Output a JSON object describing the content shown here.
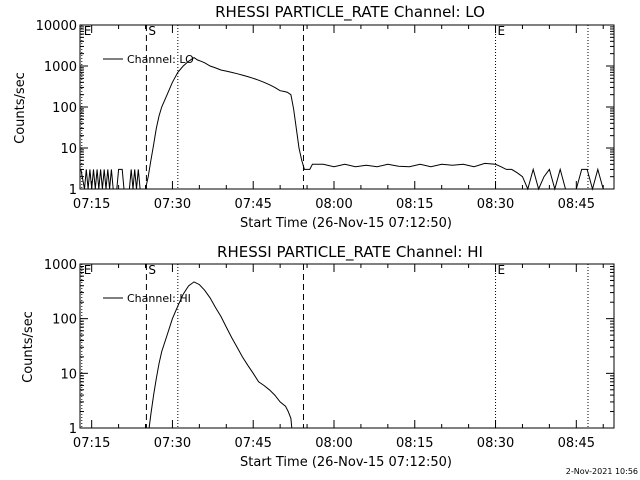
{
  "footer_timestamp": "2-Nov-2021 10:56",
  "chart_data": [
    {
      "type": "line",
      "title": "RHESSI PARTICLE_RATE Channel: LO",
      "xlabel": "Start Time (26-Nov-15 07:12:50)",
      "ylabel": "Counts/sec",
      "y_scale": "log",
      "ylim": [
        1,
        10000
      ],
      "xlim": [
        "07:12:50",
        "08:52:00"
      ],
      "x_ticks": [
        "07:15",
        "07:30",
        "07:45",
        "08:00",
        "08:15",
        "08:30",
        "08:45"
      ],
      "y_ticks": [
        "1",
        "10",
        "100",
        "1000",
        "10000"
      ],
      "legend": {
        "position": "top-left",
        "entries": [
          "Channel: LO"
        ]
      },
      "markers": [
        {
          "label": "E",
          "time": "07:13:10",
          "style": "dotted"
        },
        {
          "label": "S",
          "time": "07:25:10",
          "style": "dashed"
        },
        {
          "label": "",
          "time": "07:31:00",
          "style": "dotted"
        },
        {
          "label": "",
          "time": "07:54:20",
          "style": "dashed"
        },
        {
          "label": "E",
          "time": "08:30:00",
          "style": "dotted"
        },
        {
          "label": "",
          "time": "08:47:10",
          "style": "dotted"
        }
      ],
      "series": [
        {
          "name": "Channel: LO",
          "x": [
            "07:13:00",
            "07:13:40",
            "07:14:00",
            "07:14:20",
            "07:14:40",
            "07:15:00",
            "07:15:20",
            "07:15:40",
            "07:16:00",
            "07:16:20",
            "07:16:40",
            "07:17:00",
            "07:17:20",
            "07:17:40",
            "07:18:00",
            "07:18:20",
            "07:18:40",
            "07:19:00",
            "07:19:20",
            "07:19:40",
            "07:20:00",
            "07:20:40",
            "07:21:00",
            "07:21:20",
            "07:21:40",
            "07:22:00",
            "07:22:20",
            "07:22:40",
            "07:23:00",
            "07:23:20",
            "07:23:40",
            "07:24:00",
            "07:24:20",
            "07:24:40",
            "07:25:00",
            "07:25:30",
            "07:26:00",
            "07:26:30",
            "07:27:00",
            "07:27:30",
            "07:28:00",
            "07:29:00",
            "07:30:00",
            "07:31:00",
            "07:32:00",
            "07:33:00",
            "07:34:00",
            "07:34:40",
            "07:35:20",
            "07:36:00",
            "07:37:00",
            "07:38:00",
            "07:39:00",
            "07:40:00",
            "07:41:00",
            "07:42:00",
            "07:43:00",
            "07:44:00",
            "07:45:00",
            "07:46:00",
            "07:47:00",
            "07:48:00",
            "07:49:00",
            "07:50:00",
            "07:50:40",
            "07:51:20",
            "07:52:00",
            "07:52:30",
            "07:53:00",
            "07:53:30",
            "07:54:00",
            "07:54:30",
            "07:55:00",
            "07:55:30",
            "07:56:00",
            "07:58:00",
            "08:00:00",
            "08:02:00",
            "08:04:00",
            "08:06:00",
            "08:08:00",
            "08:10:00",
            "08:12:00",
            "08:14:00",
            "08:16:00",
            "08:18:00",
            "08:20:00",
            "08:22:00",
            "08:24:00",
            "08:26:00",
            "08:28:00",
            "08:30:00",
            "08:31:00",
            "08:32:00",
            "08:33:00",
            "08:34:00",
            "08:35:00",
            "08:36:00",
            "08:37:00",
            "08:38:00",
            "08:39:00",
            "08:40:00",
            "08:41:00",
            "08:42:00",
            "08:43:00",
            "08:44:00",
            "08:45:00",
            "08:46:00",
            "08:47:00",
            "08:48:00",
            "08:49:00",
            "08:50:00",
            "08:51:00"
          ],
          "values": [
            3,
            1,
            3,
            1,
            3,
            1,
            3,
            1,
            3,
            1,
            3,
            1,
            3,
            1,
            3,
            1,
            3,
            1,
            1,
            1,
            3,
            3,
            1,
            1,
            1,
            1,
            3,
            1,
            3,
            1,
            3,
            1,
            1,
            1,
            1,
            2,
            5,
            12,
            30,
            60,
            100,
            200,
            400,
            700,
            1000,
            1300,
            1600,
            1400,
            1300,
            1200,
            1000,
            900,
            800,
            750,
            700,
            650,
            600,
            550,
            500,
            450,
            400,
            350,
            300,
            250,
            240,
            230,
            200,
            90,
            30,
            10,
            5,
            3,
            3,
            3,
            4,
            4,
            3.5,
            4,
            3.5,
            3.8,
            3.5,
            4,
            3.6,
            3.5,
            4,
            3.5,
            4,
            3.8,
            4,
            3.5,
            4.2,
            4,
            3.5,
            3,
            3,
            2.5,
            2,
            1,
            3,
            1,
            2,
            3,
            1,
            3,
            1,
            1,
            1,
            3,
            3,
            1,
            3,
            1,
            1
          ]
        }
      ]
    },
    {
      "type": "line",
      "title": "RHESSI PARTICLE_RATE Channel: HI",
      "xlabel": "Start Time (26-Nov-15 07:12:50)",
      "ylabel": "Counts/sec",
      "y_scale": "log",
      "ylim": [
        1,
        1000
      ],
      "xlim": [
        "07:12:50",
        "08:52:00"
      ],
      "x_ticks": [
        "07:15",
        "07:30",
        "07:45",
        "08:00",
        "08:15",
        "08:30",
        "08:45"
      ],
      "y_ticks": [
        "1",
        "10",
        "100",
        "1000"
      ],
      "legend": {
        "position": "top-left",
        "entries": [
          "Channel: HI"
        ]
      },
      "markers": [
        {
          "label": "E",
          "time": "07:13:10",
          "style": "dotted"
        },
        {
          "label": "S",
          "time": "07:25:10",
          "style": "dashed"
        },
        {
          "label": "",
          "time": "07:31:00",
          "style": "dotted"
        },
        {
          "label": "",
          "time": "07:54:20",
          "style": "dashed"
        },
        {
          "label": "E",
          "time": "08:30:00",
          "style": "dotted"
        },
        {
          "label": "",
          "time": "08:47:10",
          "style": "dotted"
        }
      ],
      "series": [
        {
          "name": "Channel: HI",
          "x": [
            "07:25:40",
            "07:26:00",
            "07:26:30",
            "07:27:00",
            "07:27:30",
            "07:28:00",
            "07:29:00",
            "07:30:00",
            "07:31:00",
            "07:32:00",
            "07:33:00",
            "07:34:00",
            "07:35:00",
            "07:36:00",
            "07:37:00",
            "07:38:00",
            "07:39:00",
            "07:40:00",
            "07:41:00",
            "07:42:00",
            "07:43:00",
            "07:44:00",
            "07:45:00",
            "07:46:00",
            "07:47:00",
            "07:48:00",
            "07:49:00",
            "07:50:00",
            "07:51:00",
            "07:51:30",
            "07:52:00",
            "07:52:10"
          ],
          "values": [
            1,
            1.8,
            4,
            8,
            15,
            25,
            50,
            100,
            170,
            280,
            400,
            470,
            420,
            330,
            240,
            160,
            110,
            70,
            45,
            30,
            20,
            14,
            10,
            7,
            6,
            5,
            4,
            3,
            2.5,
            2,
            1.5,
            1
          ]
        }
      ]
    }
  ]
}
